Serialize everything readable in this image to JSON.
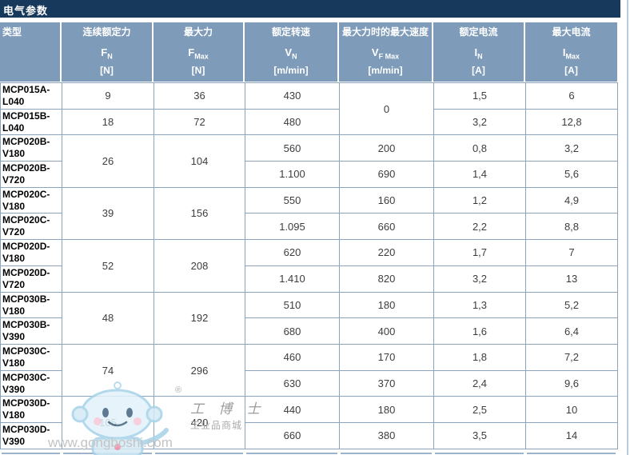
{
  "page": {
    "title": "电气参数"
  },
  "colors": {
    "title_bar": "#17395C",
    "header_bg": "#7E9BB9",
    "grid_border": "#8BA3BC",
    "value_text": "#3D3D3D",
    "page_edge": "#B9CBDC"
  },
  "table": {
    "columns": [
      {
        "label": "类型",
        "symbol": "",
        "sub": "",
        "unit": ""
      },
      {
        "label": "连续额定力",
        "symbol": "F",
        "sub": "N",
        "unit": "[N]"
      },
      {
        "label": "最大力",
        "symbol": "F",
        "sub": "Max",
        "unit": "[N]"
      },
      {
        "label": "额定转速",
        "symbol": "V",
        "sub": "N",
        "unit": "[m/min]"
      },
      {
        "label": "最大力时的最大速度",
        "symbol": "V",
        "sub": "F Max",
        "unit": "[m/min]"
      },
      {
        "label": "额定电流",
        "symbol": "I",
        "sub": "N",
        "unit": "[A]"
      },
      {
        "label": "最大电流",
        "symbol": "I",
        "sub": "Max",
        "unit": "[A]"
      }
    ],
    "rows": [
      {
        "type": "MCP015A-L040",
        "cells": [
          {
            "v": "9"
          },
          {
            "v": "36"
          },
          {
            "v": "430"
          },
          {
            "v": "0",
            "rowspan": 2
          },
          {
            "v": "1,5"
          },
          {
            "v": "6"
          }
        ]
      },
      {
        "type": "MCP015B-L040",
        "cells": [
          {
            "v": "18"
          },
          {
            "v": "72"
          },
          {
            "v": "480"
          },
          null,
          {
            "v": "3,2"
          },
          {
            "v": "12,8"
          }
        ]
      },
      {
        "type": "MCP020B-V180",
        "cells": [
          {
            "v": "26",
            "rowspan": 2
          },
          {
            "v": "104",
            "rowspan": 2
          },
          {
            "v": "560"
          },
          {
            "v": "200"
          },
          {
            "v": "0,8"
          },
          {
            "v": "3,2"
          }
        ]
      },
      {
        "type": "MCP020B-V720",
        "cells": [
          null,
          null,
          {
            "v": "1.100"
          },
          {
            "v": "690"
          },
          {
            "v": "1,4"
          },
          {
            "v": "5,6"
          }
        ]
      },
      {
        "type": "MCP020C-V180",
        "cells": [
          {
            "v": "39",
            "rowspan": 2
          },
          {
            "v": "156",
            "rowspan": 2
          },
          {
            "v": "550"
          },
          {
            "v": "160"
          },
          {
            "v": "1,2"
          },
          {
            "v": "4,9"
          }
        ]
      },
      {
        "type": "MCP020C-V720",
        "cells": [
          null,
          null,
          {
            "v": "1.095"
          },
          {
            "v": "660"
          },
          {
            "v": "2,2"
          },
          {
            "v": "8,8"
          }
        ]
      },
      {
        "type": "MCP020D-V180",
        "cells": [
          {
            "v": "52",
            "rowspan": 2
          },
          {
            "v": "208",
            "rowspan": 2
          },
          {
            "v": "620"
          },
          {
            "v": "220"
          },
          {
            "v": "1,7"
          },
          {
            "v": "7"
          }
        ]
      },
      {
        "type": "MCP020D-V720",
        "cells": [
          null,
          null,
          {
            "v": "1.410"
          },
          {
            "v": "820"
          },
          {
            "v": "3,2"
          },
          {
            "v": "13"
          }
        ]
      },
      {
        "type": "MCP030B-V180",
        "cells": [
          {
            "v": "48",
            "rowspan": 2
          },
          {
            "v": "192",
            "rowspan": 2
          },
          {
            "v": "510"
          },
          {
            "v": "180"
          },
          {
            "v": "1,3"
          },
          {
            "v": "5,2"
          }
        ]
      },
      {
        "type": "MCP030B-V390",
        "cells": [
          null,
          null,
          {
            "v": "680"
          },
          {
            "v": "400"
          },
          {
            "v": "1,6"
          },
          {
            "v": "6,4"
          }
        ]
      },
      {
        "type": "MCP030C-V180",
        "cells": [
          {
            "v": "74",
            "rowspan": 2
          },
          {
            "v": "296",
            "rowspan": 2
          },
          {
            "v": "460"
          },
          {
            "v": "170"
          },
          {
            "v": "1,8"
          },
          {
            "v": "7,2"
          }
        ]
      },
      {
        "type": "MCP030C-V390",
        "cells": [
          null,
          null,
          {
            "v": "630"
          },
          {
            "v": "370"
          },
          {
            "v": "2,4"
          },
          {
            "v": "9,6"
          }
        ]
      },
      {
        "type": "MCP030D-V180",
        "cells": [
          {
            "v": "105",
            "rowspan": 2
          },
          {
            "v": "420",
            "rowspan": 2
          },
          {
            "v": "440"
          },
          {
            "v": "180"
          },
          {
            "v": "2,5"
          },
          {
            "v": "10"
          }
        ]
      },
      {
        "type": "MCP030D-V390",
        "cells": [
          null,
          null,
          {
            "v": "660"
          },
          {
            "v": "380"
          },
          {
            "v": "3,5"
          },
          {
            "v": "14"
          }
        ]
      }
    ]
  },
  "watermark": {
    "reg": "®",
    "name": "工 博 士",
    "sub": "工业品商城",
    "url": "www.gongboshi.com"
  }
}
